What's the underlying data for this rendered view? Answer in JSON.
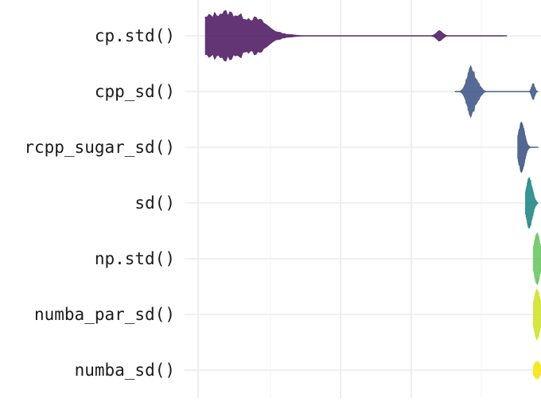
{
  "chart_data": {
    "type": "violin",
    "title": "",
    "xlabel": "",
    "ylabel": "",
    "grid": true,
    "legend": "none",
    "categories": [
      "cp.std()",
      "cpp_sd()",
      "rcpp_sugar_sd()",
      "sd()",
      "np.std()",
      "numba_par_sd()",
      "numba_sd()"
    ],
    "series": [
      {
        "category": "cp.std()",
        "color": "#5b2a6e",
        "range": [
          0,
          0.38
        ],
        "modes": [
          {
            "at": 0.025,
            "height": 0.42,
            "spread": 0.035
          },
          {
            "at": 0.07,
            "height": 0.1,
            "spread": 0.01
          },
          {
            "at": 0.3,
            "height": 0.1,
            "spread": 0.004
          }
        ]
      },
      {
        "category": "cpp_sd()",
        "color": "#4c6390",
        "range": [
          0.32,
          0.42
        ],
        "modes": [
          {
            "at": 0.34,
            "height": 0.42,
            "spread": 0.005
          },
          {
            "at": 0.35,
            "height": 0.1,
            "spread": 0.004
          },
          {
            "at": 0.42,
            "height": 0.15,
            "spread": 0.002
          }
        ]
      },
      {
        "category": "rcpp_sugar_sd()",
        "color": "#4a5f8c",
        "range": [
          0.4,
          0.42
        ],
        "modes": [
          {
            "at": 0.405,
            "height": 0.42,
            "spread": 0.004
          }
        ]
      },
      {
        "category": "sd()",
        "color": "#2e8e8e",
        "range": [
          0.41,
          0.42
        ],
        "modes": [
          {
            "at": 0.415,
            "height": 0.42,
            "spread": 0.004
          }
        ]
      },
      {
        "category": "np.std()",
        "color": "#74c96a",
        "range": [
          0.42,
          0.43
        ],
        "modes": [
          {
            "at": 0.425,
            "height": 0.42,
            "spread": 0.004
          }
        ]
      },
      {
        "category": "numba_par_sd()",
        "color": "#d3e43a",
        "range": [
          0.42,
          0.43
        ],
        "modes": [
          {
            "at": 0.425,
            "height": 0.42,
            "spread": 0.004
          }
        ]
      },
      {
        "category": "numba_sd()",
        "color": "#f6e622",
        "range": [
          0.42,
          0.43
        ],
        "modes": [
          {
            "at": 0.425,
            "height": 0.15,
            "spread": 0.004
          }
        ]
      }
    ]
  }
}
